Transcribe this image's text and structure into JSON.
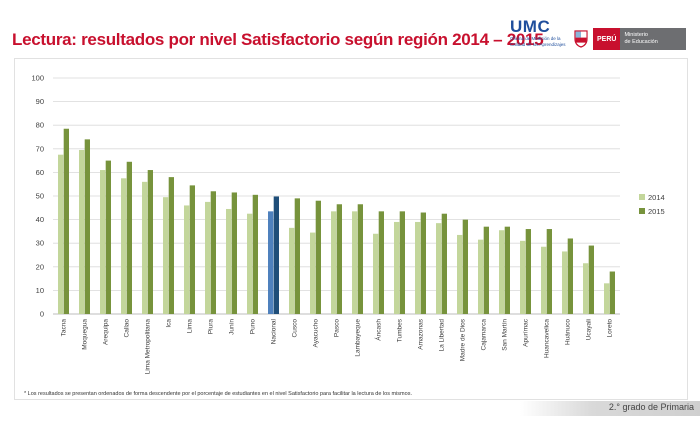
{
  "header": {
    "title": "Lectura: resultados por nivel Satisfactorio según región 2014 – 2015",
    "umc_name": "UMC",
    "umc_sub_1": "Oficina de Medición de la",
    "umc_sub_2": "Calidad de los Aprendizajes",
    "peru_label": "PERÚ",
    "ministry_1": "Ministerio",
    "ministry_2": "de Educación"
  },
  "footer": {
    "note": "* Los resultados se presentan ordenados de forma descendente por el porcentaje de estudiantes en el nivel Satisfactorio para facilitar la lectura de los mismos.",
    "grade": "2.° grado de Primaria"
  },
  "colors": {
    "series_2014": "#c3d69b",
    "series_2015": "#77933c",
    "nacional_2014": "#4f81bd",
    "nacional_2015": "#1f4e79",
    "title": "#c8102e"
  },
  "chart_data": {
    "type": "bar",
    "title": "",
    "xlabel": "",
    "ylabel": "",
    "ylim": [
      0,
      100
    ],
    "yticks": [
      0,
      10,
      20,
      30,
      40,
      50,
      60,
      70,
      80,
      90,
      100
    ],
    "grid": true,
    "legend_position": "right",
    "highlight_category": "Nacional",
    "categories": [
      "Tacna",
      "Moquegua",
      "Arequipa",
      "Callao",
      "Lima Metropolitana",
      "Ica",
      "Lima",
      "Piura",
      "Junín",
      "Puno",
      "Nacional",
      "Cusco",
      "Ayacucho",
      "Pasco",
      "Lambayeque",
      "Áncash",
      "Tumbes",
      "Amazonas",
      "La Libertad",
      "Madre de Dios",
      "Cajamarca",
      "San Martín",
      "Apurímac",
      "Huancavelica",
      "Huánuco",
      "Ucayali",
      "Loreto"
    ],
    "series": [
      {
        "name": "2014",
        "values": [
          67.5,
          69.5,
          61,
          57.5,
          56,
          49.5,
          46,
          47.5,
          44.5,
          42.5,
          43.5,
          36.5,
          34.5,
          43.5,
          43.5,
          34,
          39,
          39,
          38.5,
          33.5,
          31.5,
          35.5,
          31,
          28.5,
          26.5,
          21.5,
          13
        ]
      },
      {
        "name": "2015",
        "values": [
          78.5,
          74,
          65,
          64.5,
          61,
          58,
          54.5,
          52,
          51.5,
          50.5,
          49.8,
          49,
          48,
          46.5,
          46.5,
          43.5,
          43.5,
          43,
          42.5,
          40,
          37,
          37,
          36,
          36,
          32,
          29,
          18
        ]
      }
    ]
  }
}
